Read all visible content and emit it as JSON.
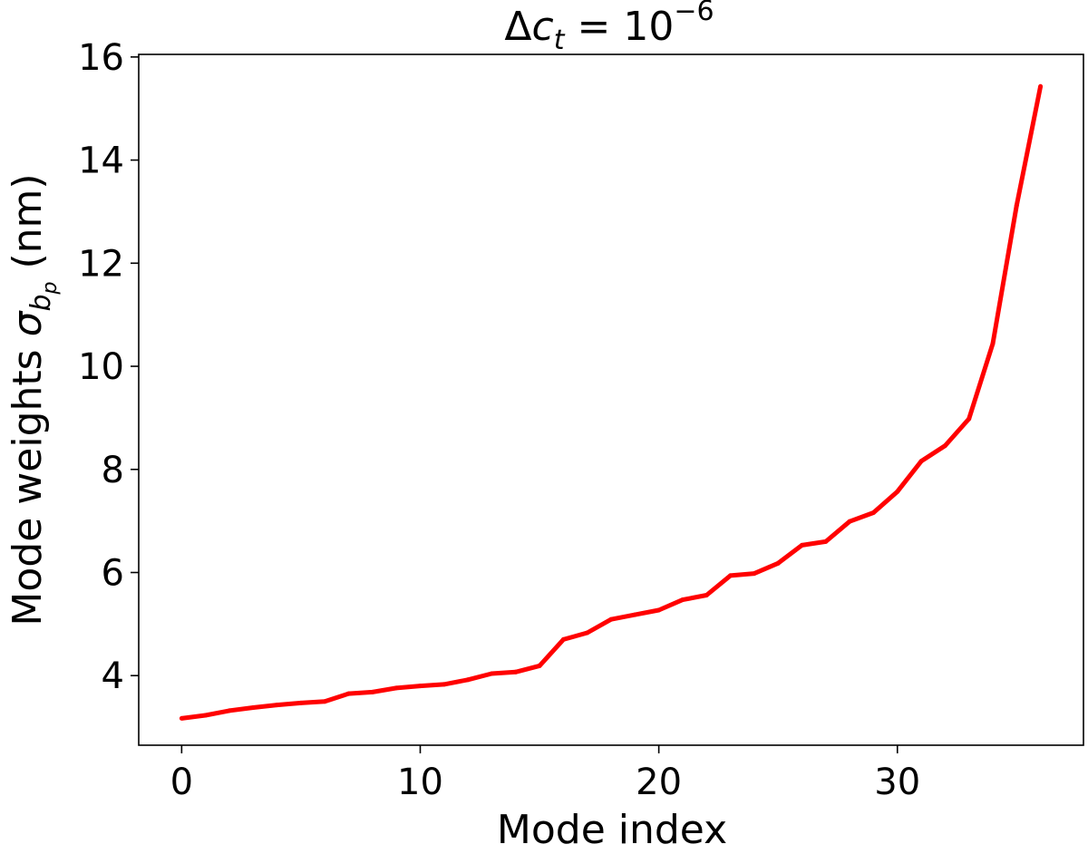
{
  "chart_data": {
    "type": "line",
    "title": {
      "prefix": "Δ",
      "var": "c",
      "sub": "t",
      "eq": " = 10",
      "exp": "−6"
    },
    "xlabel": "Mode index",
    "ylabel": {
      "prefix": "Mode weights ",
      "var": "σ",
      "sub": "b",
      "subsub": "p",
      "suffix": " (nm)"
    },
    "xlim": [
      -1.8,
      37.8
    ],
    "ylim": [
      2.65,
      16.05
    ],
    "xticks": [
      0,
      10,
      20,
      30
    ],
    "yticks": [
      4,
      6,
      8,
      10,
      12,
      14,
      16
    ],
    "grid": false,
    "line_color": "#ff0000",
    "series": [
      {
        "x": [
          0,
          1,
          2,
          3,
          4,
          5,
          6,
          7,
          8,
          9,
          10,
          11,
          12,
          13,
          14,
          15,
          16,
          17,
          18,
          19,
          20,
          21,
          22,
          23,
          24,
          25,
          26,
          27,
          28,
          29,
          30,
          31,
          32,
          33,
          34,
          35,
          36
        ],
        "values": [
          3.17,
          3.23,
          3.32,
          3.38,
          3.43,
          3.47,
          3.5,
          3.65,
          3.68,
          3.76,
          3.8,
          3.83,
          3.92,
          4.04,
          4.07,
          4.19,
          4.7,
          4.83,
          5.09,
          5.18,
          5.27,
          5.47,
          5.56,
          5.94,
          5.98,
          6.18,
          6.53,
          6.6,
          6.99,
          7.16,
          7.57,
          8.16,
          8.46,
          8.98,
          10.44,
          13.12,
          15.43
        ]
      }
    ]
  }
}
